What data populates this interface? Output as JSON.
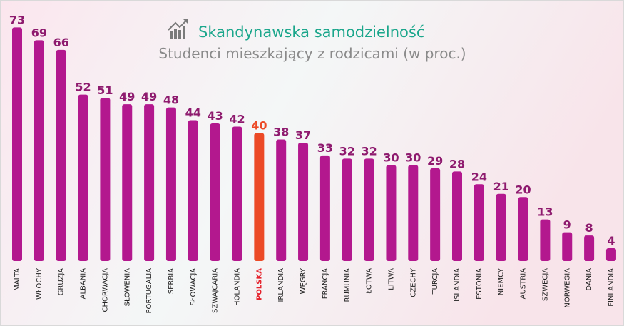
{
  "chart_data": {
    "type": "bar",
    "title": "Skandynawska samodzielność",
    "subtitle": "Studenci mieszkający z rodzicami (w proc.)",
    "categories": [
      "MALTA",
      "WŁOCHY",
      "GRUZJA",
      "ALBANIA",
      "CHORWACJA",
      "SŁOWENIA",
      "PORTUGALIA",
      "SERBIA",
      "SŁOWACJA",
      "SZWAJCARIA",
      "HOLANDIA",
      "POLSKA",
      "IRLANDIA",
      "WĘGRY",
      "FRANCJA",
      "RUMUNIA",
      "ŁOTWA",
      "LITWA",
      "CZECHY",
      "TURCJA",
      "ISLANDIA",
      "ESTONIA",
      "NIEMCY",
      "AUSTRIA",
      "SZWECJA",
      "NORWEGIA",
      "DANIA",
      "FINLANDIA"
    ],
    "values": [
      73,
      69,
      66,
      52,
      51,
      49,
      49,
      48,
      44,
      43,
      42,
      40,
      38,
      37,
      33,
      32,
      32,
      30,
      30,
      29,
      28,
      24,
      21,
      20,
      13,
      9,
      8,
      4
    ],
    "colors": [
      "#b3188e",
      "#b3188e",
      "#b3188e",
      "#b3188e",
      "#b3188e",
      "#b3188e",
      "#b3188e",
      "#b3188e",
      "#b3188e",
      "#b3188e",
      "#b3188e",
      "#ec4a26",
      "#b3188e",
      "#b3188e",
      "#b3188e",
      "#b3188e",
      "#b3188e",
      "#b3188e",
      "#b3188e",
      "#b3188e",
      "#b3188e",
      "#b3188e",
      "#b3188e",
      "#b3188e",
      "#b3188e",
      "#b3188e",
      "#b3188e",
      "#b3188e"
    ],
    "label_colors": [
      "#222222",
      "#222222",
      "#222222",
      "#222222",
      "#222222",
      "#222222",
      "#222222",
      "#222222",
      "#222222",
      "#222222",
      "#222222",
      "#e5202a",
      "#222222",
      "#222222",
      "#222222",
      "#222222",
      "#222222",
      "#222222",
      "#222222",
      "#222222",
      "#222222",
      "#222222",
      "#222222",
      "#222222",
      "#222222",
      "#222222",
      "#222222",
      "#222222"
    ],
    "value_label_colors": [
      "#8e1a6e",
      "#8e1a6e",
      "#8e1a6e",
      "#8e1a6e",
      "#8e1a6e",
      "#8e1a6e",
      "#8e1a6e",
      "#8e1a6e",
      "#8e1a6e",
      "#8e1a6e",
      "#8e1a6e",
      "#ec4a26",
      "#8e1a6e",
      "#8e1a6e",
      "#8e1a6e",
      "#8e1a6e",
      "#8e1a6e",
      "#8e1a6e",
      "#8e1a6e",
      "#8e1a6e",
      "#8e1a6e",
      "#8e1a6e",
      "#8e1a6e",
      "#8e1a6e",
      "#8e1a6e",
      "#8e1a6e",
      "#8e1a6e",
      "#8e1a6e"
    ],
    "ylim": [
      0,
      80
    ],
    "grid": false
  }
}
